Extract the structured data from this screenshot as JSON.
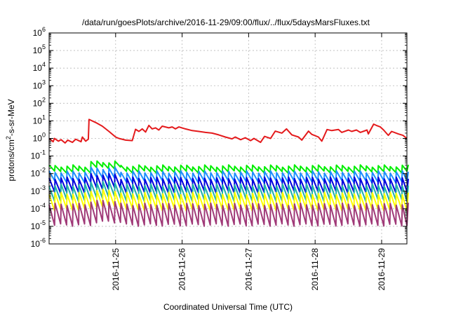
{
  "chart_data": {
    "type": "line",
    "title": "/data/run/goesPlots/archive/2016-11-29/09:00/flux/../flux/5daysMarsFluxes.txt",
    "xlabel": "Coordinated Universal Time (UTC)",
    "ylabel": "protons/cm²-s-sr-MeV",
    "yscale": "log",
    "ylim": [
      1e-06,
      1000000.0
    ],
    "xlim": [
      0,
      5.38
    ],
    "grid": true,
    "x_ticks": [
      {
        "x": 1,
        "label": "2016-11-25"
      },
      {
        "x": 2,
        "label": "2016-11-26"
      },
      {
        "x": 3,
        "label": "2016-11-27"
      },
      {
        "x": 4,
        "label": "2016-11-28"
      },
      {
        "x": 5,
        "label": "2016-11-29"
      }
    ],
    "y_ticks": [
      {
        "exp": -6,
        "label": "10",
        "sup": "-6"
      },
      {
        "exp": -5,
        "label": "10",
        "sup": "-5"
      },
      {
        "exp": -4,
        "label": "10",
        "sup": "-4"
      },
      {
        "exp": -3,
        "label": "10",
        "sup": "-3"
      },
      {
        "exp": -2,
        "label": "10",
        "sup": "-2"
      },
      {
        "exp": -1,
        "label": "10",
        "sup": "-1"
      },
      {
        "exp": 0,
        "label": "10",
        "sup": "0"
      },
      {
        "exp": 1,
        "label": "10",
        "sup": "1"
      },
      {
        "exp": 2,
        "label": "10",
        "sup": "2"
      },
      {
        "exp": 3,
        "label": "10",
        "sup": "3"
      },
      {
        "exp": 4,
        "label": "10",
        "sup": "4"
      },
      {
        "exp": 5,
        "label": "10",
        "sup": "5"
      },
      {
        "exp": 6,
        "label": "10",
        "sup": "6"
      }
    ],
    "series": [
      {
        "color": "#e41a1c",
        "x": [
          0.0,
          0.06,
          0.08,
          0.14,
          0.18,
          0.24,
          0.28,
          0.35,
          0.4,
          0.48,
          0.5,
          0.55,
          0.59,
          0.6,
          0.7,
          0.8,
          0.9,
          1.0,
          1.05,
          1.15,
          1.25,
          1.3,
          1.35,
          1.4,
          1.45,
          1.5,
          1.55,
          1.6,
          1.65,
          1.7,
          1.8,
          1.85,
          1.9,
          1.95,
          2.05,
          2.15,
          2.25,
          2.35,
          2.45,
          2.55,
          2.65,
          2.75,
          2.8,
          2.88,
          2.95,
          3.03,
          3.08,
          3.18,
          3.24,
          3.33,
          3.4,
          3.5,
          3.57,
          3.65,
          3.75,
          3.8,
          3.9,
          3.95,
          4.05,
          4.1,
          4.18,
          4.25,
          4.35,
          4.4,
          4.5,
          4.55,
          4.62,
          4.68,
          4.78,
          4.8,
          4.88,
          4.92,
          4.98,
          5.03,
          5.1,
          5.15,
          5.25,
          5.32,
          5.38
        ],
        "y": [
          1.0,
          0.65,
          1.0,
          0.7,
          0.85,
          0.55,
          0.8,
          0.6,
          0.9,
          0.65,
          1.2,
          0.7,
          0.9,
          12,
          8,
          5,
          2.5,
          1.2,
          1.0,
          0.8,
          0.75,
          3.3,
          2.5,
          3.5,
          2.3,
          5.5,
          3.5,
          4.0,
          3.0,
          5.0,
          4.0,
          4.5,
          3.5,
          4.5,
          3.5,
          2.8,
          2.5,
          2.2,
          2.0,
          1.6,
          1.2,
          0.95,
          1.2,
          0.85,
          1.1,
          0.75,
          1.0,
          0.6,
          1.3,
          1.0,
          2.6,
          2.0,
          3.5,
          1.6,
          1.2,
          0.8,
          2.6,
          1.7,
          1.2,
          0.7,
          3.2,
          2.8,
          3.2,
          2.2,
          3.0,
          2.5,
          3.0,
          2.2,
          3.0,
          1.8,
          6.5,
          5.5,
          4.5,
          3.0,
          1.5,
          2.5,
          1.8,
          1.5,
          1.0
        ]
      },
      {
        "color": "#00ee00",
        "pattern": "sawtooth",
        "base_peak": 0.027,
        "base_trough": 0.0125,
        "period": 0.09,
        "spike_x": 0.55,
        "spike_factor": 1.7
      },
      {
        "color": "#1e90ff",
        "pattern": "sawtooth",
        "base_peak": 0.0125,
        "base_trough": 0.0035,
        "period": 0.09,
        "spike_x": 0.55,
        "spike_factor": 1.6
      },
      {
        "color": "#0000dd",
        "pattern": "sawtooth",
        "base_peak": 0.0055,
        "base_trough": 0.0009,
        "period": 0.09,
        "spike_x": 0.55,
        "spike_factor": 1.6
      },
      {
        "color": "#20b2aa",
        "pattern": "sawtooth",
        "base_peak": 0.0022,
        "base_trough": 0.0003,
        "period": 0.09,
        "spike_x": 0.55,
        "spike_factor": 1.5
      },
      {
        "color": "#ffff00",
        "pattern": "sawtooth",
        "base_peak": 0.00075,
        "base_trough": 9e-05,
        "period": 0.09,
        "spike_x": 0.55,
        "spike_factor": 1.5
      },
      {
        "color": "#a03a78",
        "pattern": "sawtooth",
        "base_peak": 0.00018,
        "base_trough": 1.2e-05,
        "period": 0.09,
        "spike_x": 0.55,
        "spike_factor": 1.5
      }
    ]
  }
}
